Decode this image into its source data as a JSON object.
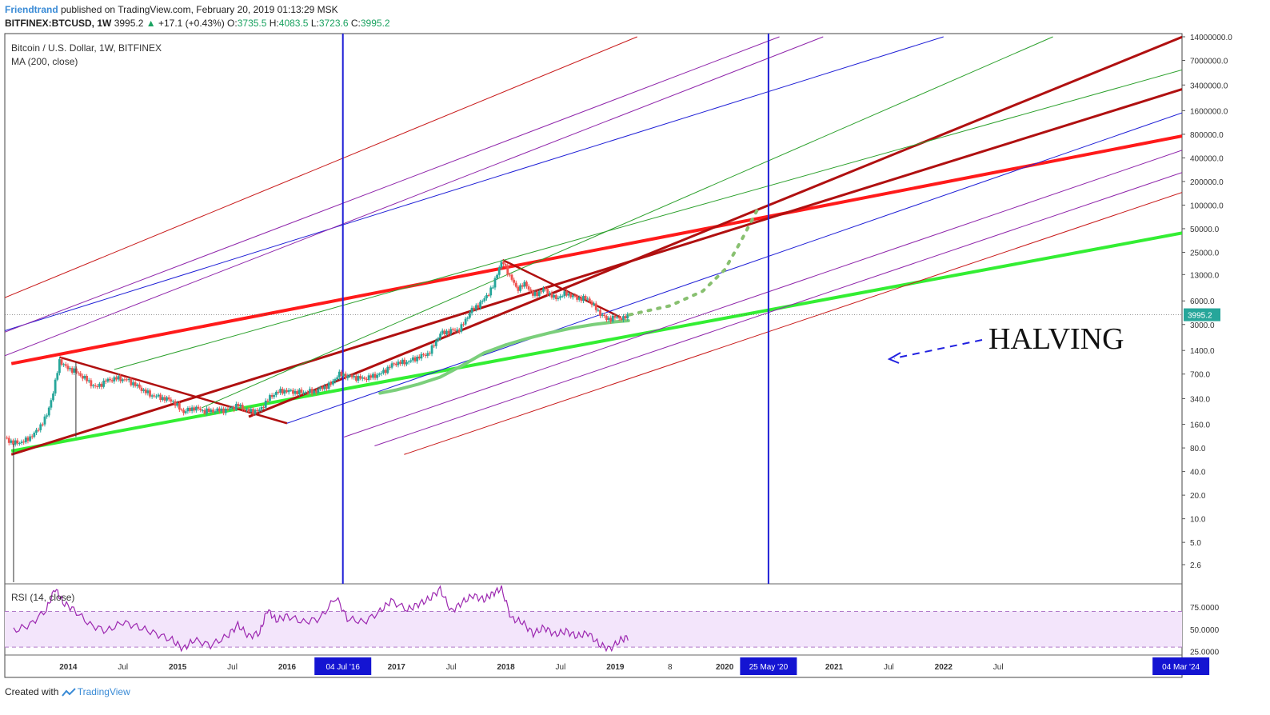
{
  "header": {
    "author": "Friendtrand",
    "published": "published on TradingView.com, February 20, 2019 01:13:29 MSK",
    "symbol": "BITFINEX:BTCUSD, 1W",
    "last": "3995.2",
    "change_arrow": "▲",
    "change": "+17.1 (+0.43%)",
    "o_label": "O:",
    "o": "3735.5",
    "h_label": "H:",
    "h": "4083.5",
    "l_label": "L:",
    "l": "3723.6",
    "c_label": "C:",
    "c": "3995.2"
  },
  "legend": {
    "title": "Bitcoin / U.S. Dollar, 1W, BITFINEX",
    "ma": "MA (200, close)",
    "rsi": "RSI (14, close)"
  },
  "annotation": {
    "halving": "HALVING"
  },
  "footer": {
    "created": "Created with",
    "brand": "TradingView"
  },
  "colors": {
    "up": "#26a69a",
    "down": "#ef5350",
    "blue": "#1f1fd6",
    "red": "#ff1a1a",
    "darkred": "#b01010",
    "green": "#33ee33",
    "ma": "#7bcf7b",
    "purple": "#8e24aa",
    "rsi_line": "#9c27b0",
    "rsi_band": "#f3e5fb"
  },
  "chart_data": {
    "type": "candlestick",
    "symbol": "BTCUSD",
    "timeframe": "1W",
    "y_scale": "log",
    "y_ticks": [
      "14000000.0",
      "7000000.0",
      "3400000.0",
      "1600000.0",
      "800000.0",
      "400000.0",
      "200000.0",
      "100000.0",
      "50000.0",
      "25000.0",
      "13000.0",
      "6000.0",
      "3000.0",
      "1400.0",
      "700.0",
      "340.0",
      "160.0",
      "80.0",
      "40.0",
      "20.0",
      "10.0",
      "5.0",
      "2.6"
    ],
    "y_tick_values": [
      14000000,
      7000000,
      3400000,
      1600000,
      800000,
      400000,
      200000,
      100000,
      50000,
      25000,
      13000,
      6000,
      3000,
      1400,
      700,
      340,
      160,
      80,
      40,
      20,
      10,
      5,
      2.6
    ],
    "x_ticks": [
      "2014",
      "Jul",
      "2015",
      "Jul",
      "2016",
      "Jul",
      "2017",
      "Jul",
      "2018",
      "Jul",
      "2019",
      "8",
      "2020",
      "Jul",
      "2021",
      "Jul",
      "2022",
      "Jul"
    ],
    "x_tick_years": [
      2014.0,
      2014.5,
      2015.0,
      2015.5,
      2016.0,
      2016.5,
      2017.0,
      2017.5,
      2018.0,
      2018.5,
      2019.0,
      2019.5,
      2020.0,
      2020.5,
      2021.0,
      2021.5,
      2022.0,
      2022.5
    ],
    "x_range": [
      2013.42,
      2024.18
    ],
    "last_price": "3995.2",
    "last_price_value": 3995.2,
    "date_markers": [
      {
        "label": "04 Jul '16",
        "year": 2016.51
      },
      {
        "label": "25 May '20",
        "year": 2020.4
      },
      {
        "label": "04 Mar '24",
        "year": 2024.17
      }
    ],
    "price_path": [
      [
        2013.42,
        108
      ],
      [
        2013.5,
        92
      ],
      [
        2013.6,
        97
      ],
      [
        2013.7,
        125
      ],
      [
        2013.8,
        200
      ],
      [
        2013.87,
        450
      ],
      [
        2013.92,
        1050
      ],
      [
        2013.98,
        850
      ],
      [
        2014.05,
        780
      ],
      [
        2014.15,
        620
      ],
      [
        2014.25,
        470
      ],
      [
        2014.35,
        580
      ],
      [
        2014.45,
        620
      ],
      [
        2014.55,
        580
      ],
      [
        2014.65,
        470
      ],
      [
        2014.75,
        380
      ],
      [
        2014.85,
        350
      ],
      [
        2014.95,
        320
      ],
      [
        2015.05,
        230
      ],
      [
        2015.15,
        260
      ],
      [
        2015.25,
        235
      ],
      [
        2015.35,
        240
      ],
      [
        2015.45,
        245
      ],
      [
        2015.55,
        280
      ],
      [
        2015.65,
        235
      ],
      [
        2015.75,
        240
      ],
      [
        2015.82,
        330
      ],
      [
        2015.9,
        410
      ],
      [
        2015.98,
        430
      ],
      [
        2016.1,
        410
      ],
      [
        2016.25,
        420
      ],
      [
        2016.4,
        520
      ],
      [
        2016.47,
        700
      ],
      [
        2016.55,
        660
      ],
      [
        2016.7,
        610
      ],
      [
        2016.85,
        700
      ],
      [
        2016.98,
        960
      ],
      [
        2017.1,
        1000
      ],
      [
        2017.2,
        1150
      ],
      [
        2017.3,
        1300
      ],
      [
        2017.4,
        2300
      ],
      [
        2017.5,
        2500
      ],
      [
        2017.58,
        2600
      ],
      [
        2017.68,
        4500
      ],
      [
        2017.78,
        5800
      ],
      [
        2017.88,
        9000
      ],
      [
        2017.94,
        16500
      ],
      [
        2017.97,
        19000
      ],
      [
        2018.03,
        13000
      ],
      [
        2018.1,
        8500
      ],
      [
        2018.18,
        10000
      ],
      [
        2018.25,
        7000
      ],
      [
        2018.35,
        8500
      ],
      [
        2018.45,
        6400
      ],
      [
        2018.55,
        7500
      ],
      [
        2018.65,
        6500
      ],
      [
        2018.75,
        6400
      ],
      [
        2018.85,
        4300
      ],
      [
        2018.92,
        3500
      ],
      [
        2019.0,
        3700
      ],
      [
        2019.08,
        3600
      ],
      [
        2019.13,
        3995
      ]
    ],
    "ma200": [
      [
        2016.85,
        400
      ],
      [
        2017.0,
        440
      ],
      [
        2017.2,
        520
      ],
      [
        2017.4,
        640
      ],
      [
        2017.6,
        900
      ],
      [
        2017.8,
        1300
      ],
      [
        2018.0,
        1650
      ],
      [
        2018.2,
        2000
      ],
      [
        2018.4,
        2350
      ],
      [
        2018.6,
        2700
      ],
      [
        2018.8,
        3000
      ],
      [
        2019.0,
        3250
      ],
      [
        2019.12,
        3350
      ]
    ],
    "lines": [
      {
        "name": "green-support",
        "points": [
          [
            2013.48,
            73
          ],
          [
            2024.18,
            44000
          ]
        ]
      },
      {
        "name": "red-resistance-thick",
        "points": [
          [
            2013.48,
            950
          ],
          [
            2024.18,
            760000
          ]
        ]
      },
      {
        "name": "darkred-downtrend-2014",
        "points": [
          [
            2013.92,
            1150
          ],
          [
            2016.0,
            165
          ]
        ]
      },
      {
        "name": "darkred-downtrend-2018",
        "points": [
          [
            2017.97,
            20000
          ],
          [
            2019.05,
            3700
          ]
        ]
      },
      {
        "name": "darkred-channel-lower",
        "points": [
          [
            2013.48,
            66
          ],
          [
            2024.18,
            3000000
          ]
        ]
      },
      {
        "name": "darkred-channel-upper",
        "points": [
          [
            2015.65,
            200
          ],
          [
            2024.18,
            13900000
          ]
        ]
      },
      {
        "name": "blue-fan-1",
        "points": [
          [
            2013.42,
            2500
          ],
          [
            2022.0,
            14000000
          ]
        ]
      },
      {
        "name": "blue-fan-2",
        "points": [
          [
            2016.0,
            165
          ],
          [
            2024.18,
            1500000
          ]
        ]
      },
      {
        "name": "green-fan-1",
        "points": [
          [
            2014.42,
            800
          ],
          [
            2024.18,
            5300000
          ]
        ]
      },
      {
        "name": "green-fan-2",
        "points": [
          [
            2015.22,
            260
          ],
          [
            2023.0,
            14000000
          ]
        ]
      },
      {
        "name": "purple-fan-1",
        "points": [
          [
            2013.42,
            1200
          ],
          [
            2020.9,
            14000000
          ]
        ]
      },
      {
        "name": "purple-fan-2",
        "points": [
          [
            2013.42,
            2400
          ],
          [
            2020.5,
            14000000
          ]
        ]
      },
      {
        "name": "purple-fan-3",
        "points": [
          [
            2016.52,
            110
          ],
          [
            2024.18,
            500000
          ]
        ]
      },
      {
        "name": "purple-fan-4",
        "points": [
          [
            2016.8,
            85
          ],
          [
            2024.18,
            260000
          ]
        ]
      },
      {
        "name": "red-fan-1",
        "points": [
          [
            2013.42,
            6600
          ],
          [
            2019.2,
            14000000
          ]
        ]
      },
      {
        "name": "red-fan-2",
        "points": [
          [
            2017.07,
            66
          ],
          [
            2024.18,
            145000
          ]
        ]
      }
    ],
    "projection": [
      [
        2019.13,
        3995
      ],
      [
        2019.5,
        5200
      ],
      [
        2019.8,
        8000
      ],
      [
        2020.0,
        15000
      ],
      [
        2020.15,
        35000
      ],
      [
        2020.3,
        88000
      ]
    ],
    "rsi": {
      "name": "RSI (14, close)",
      "ticks": [
        "75.0000",
        "50.0000",
        "25.0000"
      ],
      "tick_values": [
        75,
        50,
        25
      ],
      "band": [
        30,
        70
      ],
      "ylim": [
        22,
        100
      ],
      "values": [
        [
          2013.5,
          48
        ],
        [
          2013.65,
          55
        ],
        [
          2013.8,
          72
        ],
        [
          2013.88,
          96
        ],
        [
          2013.95,
          80
        ],
        [
          2014.05,
          72
        ],
        [
          2014.2,
          55
        ],
        [
          2014.35,
          48
        ],
        [
          2014.5,
          58
        ],
        [
          2014.65,
          52
        ],
        [
          2014.8,
          45
        ],
        [
          2014.95,
          38
        ],
        [
          2015.05,
          28
        ],
        [
          2015.15,
          38
        ],
        [
          2015.3,
          32
        ],
        [
          2015.45,
          42
        ],
        [
          2015.55,
          55
        ],
        [
          2015.65,
          42
        ],
        [
          2015.75,
          46
        ],
        [
          2015.82,
          72
        ],
        [
          2015.9,
          60
        ],
        [
          2016.0,
          65
        ],
        [
          2016.15,
          58
        ],
        [
          2016.3,
          62
        ],
        [
          2016.45,
          86
        ],
        [
          2016.55,
          62
        ],
        [
          2016.7,
          58
        ],
        [
          2016.85,
          70
        ],
        [
          2016.95,
          82
        ],
        [
          2017.1,
          72
        ],
        [
          2017.2,
          78
        ],
        [
          2017.3,
          84
        ],
        [
          2017.4,
          95
        ],
        [
          2017.5,
          70
        ],
        [
          2017.6,
          80
        ],
        [
          2017.7,
          88
        ],
        [
          2017.8,
          83
        ],
        [
          2017.88,
          90
        ],
        [
          2017.96,
          96
        ],
        [
          2018.05,
          62
        ],
        [
          2018.15,
          58
        ],
        [
          2018.25,
          45
        ],
        [
          2018.35,
          52
        ],
        [
          2018.45,
          44
        ],
        [
          2018.55,
          48
        ],
        [
          2018.65,
          42
        ],
        [
          2018.75,
          46
        ],
        [
          2018.85,
          33
        ],
        [
          2018.95,
          28
        ],
        [
          2019.05,
          38
        ],
        [
          2019.13,
          42
        ]
      ]
    },
    "xlabel": "",
    "ylabel": ""
  }
}
